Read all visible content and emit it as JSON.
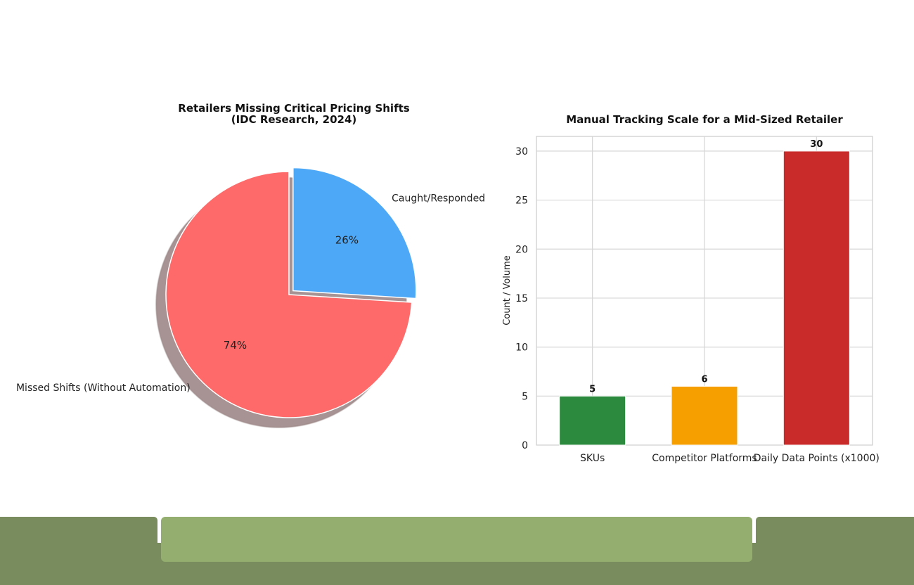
{
  "chart_data": [
    {
      "type": "pie",
      "title": "Retailers Missing Critical Pricing Shifts",
      "subtitle": "(IDC Research, 2024)",
      "slices": [
        {
          "label": "Caught/Responded",
          "value": 26,
          "pct_label": "26%",
          "color": "#4da9f8",
          "exploded": true
        },
        {
          "label": "Missed Shifts (Without Automation)",
          "value": 74,
          "pct_label": "74%",
          "color": "#fe6a6a",
          "exploded": false
        }
      ],
      "shadow": true,
      "start": "top, clockwise"
    },
    {
      "type": "bar",
      "title": "Manual Tracking Scale for a Mid-Sized Retailer",
      "categories": [
        "SKUs",
        "Competitor Platforms",
        "Daily Data Points (x1000)"
      ],
      "values": [
        5,
        6,
        30
      ],
      "value_labels": [
        "5",
        "6",
        "30"
      ],
      "colors": [
        "#2b8a3e",
        "#f59f00",
        "#c92a2a"
      ],
      "xlabel": "",
      "ylabel": "Count / Volume",
      "ylim": [
        0,
        31.5
      ],
      "yticks": [
        0,
        5,
        10,
        15,
        20,
        25,
        30
      ],
      "grid": true
    }
  ],
  "footer": {
    "accent": "#788c5d",
    "pill": "#93ae6f"
  }
}
